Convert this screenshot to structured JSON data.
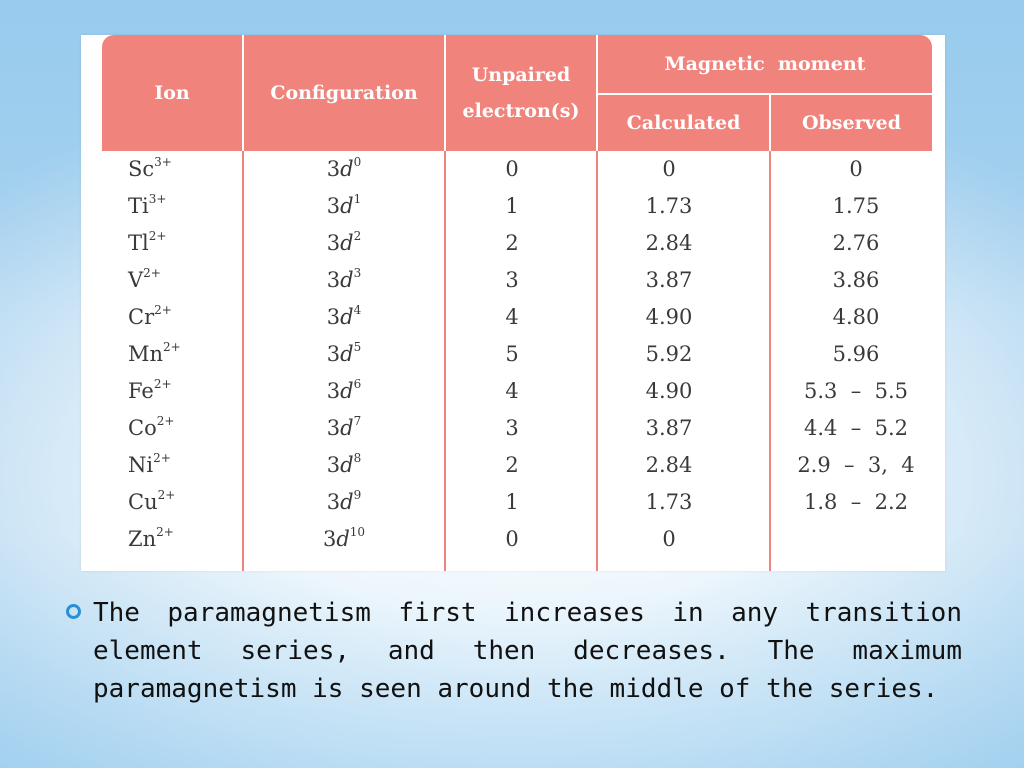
{
  "table": {
    "headers": {
      "ion": "Ion",
      "configuration": "Configuration",
      "unpaired": "Unpaired electron(s)",
      "magnetic_moment": "Magnetic  moment",
      "calculated": "Calculated",
      "observed": "Observed"
    },
    "rows": [
      {
        "ion": "Sc",
        "charge": "3+",
        "config_base": "3d",
        "config_exp": "0",
        "unpaired": "0",
        "calculated": "0",
        "observed": "0"
      },
      {
        "ion": "Ti",
        "charge": "3+",
        "config_base": "3d",
        "config_exp": "1",
        "unpaired": "1",
        "calculated": "1.73",
        "observed": "1.75"
      },
      {
        "ion": "Tl",
        "charge": "2+",
        "config_base": "3d",
        "config_exp": "2",
        "unpaired": "2",
        "calculated": "2.84",
        "observed": "2.76"
      },
      {
        "ion": "V",
        "charge": "2+",
        "config_base": "3d",
        "config_exp": "3",
        "unpaired": "3",
        "calculated": "3.87",
        "observed": "3.86"
      },
      {
        "ion": "Cr",
        "charge": "2+",
        "config_base": "3d",
        "config_exp": "4",
        "unpaired": "4",
        "calculated": "4.90",
        "observed": "4.80"
      },
      {
        "ion": "Mn",
        "charge": "2+",
        "config_base": "3d",
        "config_exp": "5",
        "unpaired": "5",
        "calculated": "5.92",
        "observed": "5.96"
      },
      {
        "ion": "Fe",
        "charge": "2+",
        "config_base": "3d",
        "config_exp": "6",
        "unpaired": "4",
        "calculated": "4.90",
        "observed": "5.3  –  5.5"
      },
      {
        "ion": "Co",
        "charge": "2+",
        "config_base": "3d",
        "config_exp": "7",
        "unpaired": "3",
        "calculated": "3.87",
        "observed": "4.4  –  5.2"
      },
      {
        "ion": "Ni",
        "charge": "2+",
        "config_base": "3d",
        "config_exp": "8",
        "unpaired": "2",
        "calculated": "2.84",
        "observed": "2.9  –  3,  4"
      },
      {
        "ion": "Cu",
        "charge": "2+",
        "config_base": "3d",
        "config_exp": "9",
        "unpaired": "1",
        "calculated": "1.73",
        "observed": "1.8  –  2.2"
      },
      {
        "ion": "Zn",
        "charge": "2+",
        "config_base": "3d",
        "config_exp": "10",
        "unpaired": "0",
        "calculated": "0",
        "observed": ""
      }
    ]
  },
  "bullet": {
    "icon": "hollow-circle-bullet-icon",
    "text": "The paramagnetism first increases in any transition element series, and then decreases. The maximum paramagnetism is seen around the middle of the series."
  },
  "colors": {
    "header_bg": "#f1837d",
    "header_text": "#ffffff",
    "bullet_accent": "#2a8fd8"
  }
}
